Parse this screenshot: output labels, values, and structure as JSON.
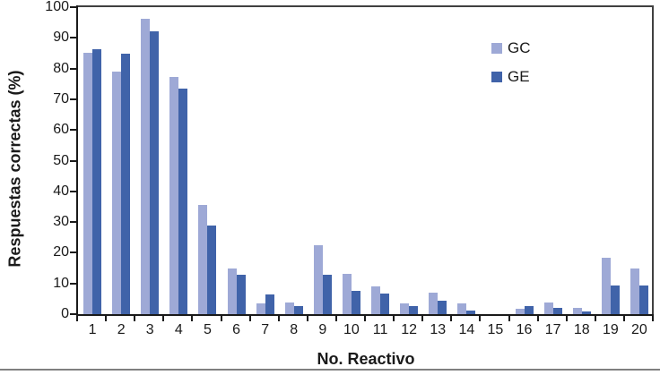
{
  "chart_data": {
    "type": "bar",
    "title": "",
    "xlabel": "No. Reactivo",
    "ylabel": "Respuestas correctas (%)",
    "categories": [
      "1",
      "2",
      "3",
      "4",
      "5",
      "6",
      "7",
      "8",
      "9",
      "10",
      "11",
      "12",
      "13",
      "14",
      "15",
      "16",
      "17",
      "18",
      "19",
      "20"
    ],
    "series": [
      {
        "name": "GC",
        "color": "#9EA9D6",
        "values": [
          85,
          79,
          96.3,
          77.2,
          35.5,
          14.9,
          3.6,
          3.7,
          22.4,
          13,
          9.1,
          3.5,
          7.1,
          3.6,
          0,
          1.7,
          3.7,
          1.9,
          18.5,
          14.9
        ]
      },
      {
        "name": "GE",
        "color": "#4063A9",
        "values": [
          86.2,
          84.8,
          92.2,
          73.5,
          28.8,
          12.8,
          6.5,
          2.7,
          12.9,
          7.6,
          6.6,
          2.5,
          4.5,
          1.3,
          0,
          2.6,
          1.9,
          0.9,
          9.3,
          9.2
        ]
      }
    ],
    "ylim": [
      0,
      100
    ],
    "ytick_step": 10,
    "grid": false,
    "legend_position": "top-right",
    "axis_color": "#1a1a1a",
    "plot_border_color": "#404040"
  },
  "footer": {
    "rule_color": "#808080"
  }
}
